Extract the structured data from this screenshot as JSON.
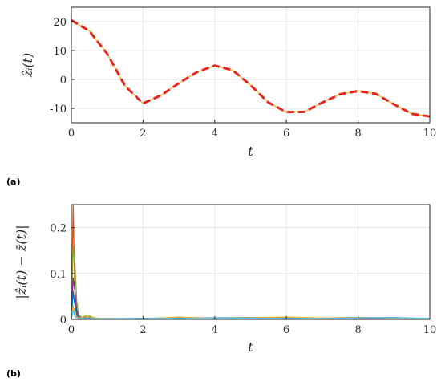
{
  "chart_data": [
    {
      "type": "line",
      "panel_label": "(a)",
      "title": "",
      "xlabel": "t",
      "ylabel": "ẑᵢ(t)",
      "xlim": [
        0,
        10
      ],
      "ylim": [
        -15,
        25
      ],
      "xticks": [
        0,
        2,
        4,
        6,
        8,
        10
      ],
      "yticks": [
        -10,
        0,
        10,
        20
      ],
      "grid": true,
      "x": [
        0,
        0.5,
        1,
        1.5,
        2,
        2.5,
        3,
        3.5,
        4,
        4.5,
        5,
        5.5,
        6,
        6.5,
        7,
        7.5,
        8,
        8.5,
        9,
        9.5,
        10
      ],
      "series": [
        {
          "color": "#e6261f",
          "style": "dashed",
          "values": [
            20.5,
            16.8,
            8.9,
            -2.3,
            -8.3,
            -5.5,
            -1.3,
            2.5,
            4.8,
            3.2,
            -2.0,
            -8.0,
            -11.3,
            -11.2,
            -8.0,
            -5.1,
            -4.0,
            -5.0,
            -8.6,
            -11.9,
            -12.8
          ]
        },
        {
          "color": "#edb120",
          "style": "solid",
          "values": [
            20.5,
            16.8,
            8.9,
            -2.3,
            -8.3,
            -5.5,
            -1.3,
            2.5,
            4.8,
            3.2,
            -2.0,
            -8.0,
            -11.3,
            -11.2,
            -8.0,
            -5.1,
            -4.0,
            -5.0,
            -8.6,
            -11.9,
            -12.8
          ]
        }
      ]
    },
    {
      "type": "line",
      "panel_label": "(b)",
      "title": "",
      "xlabel": "t",
      "ylabel": "|ẑᵢ(t) − z̄(t)|",
      "xlim": [
        0,
        10
      ],
      "ylim": [
        0,
        0.25
      ],
      "xticks": [
        0,
        2,
        4,
        6,
        8,
        10
      ],
      "yticks": [
        0,
        0.1,
        0.2
      ],
      "grid": true,
      "x": [
        0,
        0.05,
        0.1,
        0.15,
        0.2,
        0.3,
        0.4,
        0.5,
        0.6,
        0.8,
        1,
        2,
        3,
        4,
        5,
        6,
        7,
        8,
        9,
        10
      ],
      "series": [
        {
          "color": "#d95319",
          "values": [
            0.0,
            0.25,
            0.05,
            0.01,
            0.004,
            0.002,
            0.003,
            0.004,
            0.002,
            0.001,
            0.001,
            0.002,
            0.003,
            0.002,
            0.003,
            0.003,
            0.002,
            0.003,
            0.002,
            0.001
          ]
        },
        {
          "color": "#77ac30",
          "values": [
            0.0,
            0.16,
            0.12,
            0.04,
            0.01,
            0.004,
            0.006,
            0.008,
            0.004,
            0.002,
            0.001,
            0.001,
            0.002,
            0.001,
            0.002,
            0.001,
            0.001,
            0.002,
            0.001,
            0.001
          ]
        },
        {
          "color": "#7e2f8e",
          "values": [
            0.0,
            0.09,
            0.06,
            0.02,
            0.006,
            0.003,
            0.002,
            0.003,
            0.002,
            0.001,
            0.001,
            0.002,
            0.001,
            0.002,
            0.001,
            0.002,
            0.001,
            0.002,
            0.001,
            0.001
          ]
        },
        {
          "color": "#0072bd",
          "values": [
            0.0,
            0.06,
            0.03,
            0.01,
            0.004,
            0.002,
            0.003,
            0.002,
            0.002,
            0.002,
            0.002,
            0.002,
            0.004,
            0.003,
            0.004,
            0.004,
            0.003,
            0.004,
            0.003,
            0.002
          ]
        },
        {
          "color": "#edb120",
          "values": [
            0.0,
            0.03,
            0.012,
            0.006,
            0.003,
            0.004,
            0.01,
            0.006,
            0.003,
            0.002,
            0.002,
            0.001,
            0.005,
            0.002,
            0.004,
            0.005,
            0.003,
            0.004,
            0.003,
            0.002
          ]
        },
        {
          "color": "#4dbeee",
          "values": [
            0.0,
            0.02,
            0.008,
            0.003,
            0.002,
            0.002,
            0.002,
            0.002,
            0.002,
            0.001,
            0.001,
            0.002,
            0.002,
            0.002,
            0.003,
            0.002,
            0.002,
            0.003,
            0.004,
            0.002
          ]
        }
      ]
    }
  ]
}
